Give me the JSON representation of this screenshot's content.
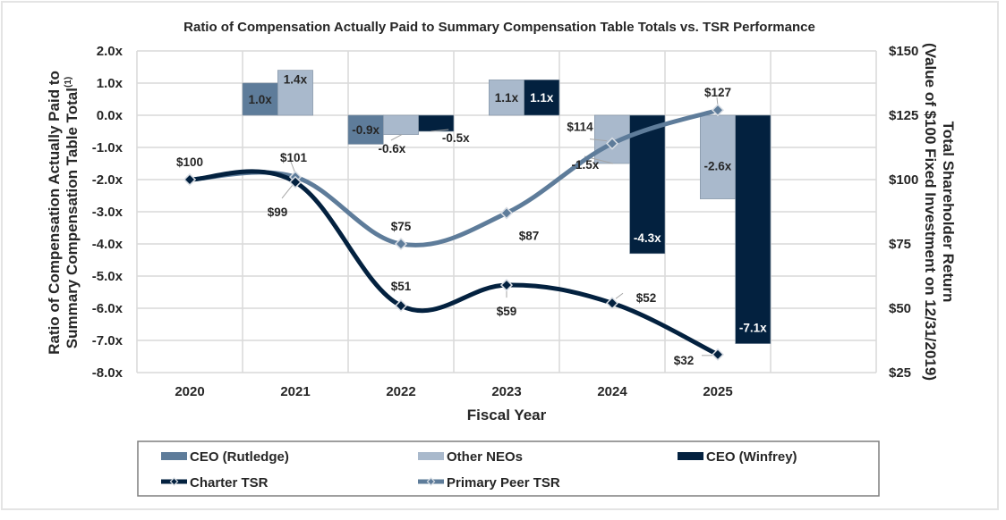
{
  "chart_data": {
    "type": "bar+line",
    "title": "Ratio of Compensation Actually Paid to Summary Compensation Table Totals vs. TSR Performance",
    "xlabel": "Fiscal Year",
    "ylabel_left": "Ratio of Compensation Actually Paid to Summary Compensation Table Total",
    "ylabel_left_superscript": "(1)",
    "ylabel_right_line1": "Total Shareholder Return",
    "ylabel_right_line2": "(Value of $100 Fixed Investment on 12/31/2019)",
    "categories": [
      "2020",
      "2021",
      "2022",
      "2023",
      "2024",
      "2025",
      ""
    ],
    "ylim_left": [
      -8.0,
      2.0
    ],
    "yticks_left": [
      "2.0x",
      "1.0x",
      "0.0x",
      "-1.0x",
      "-2.0x",
      "-3.0x",
      "-4.0x",
      "-5.0x",
      "-6.0x",
      "-7.0x",
      "-8.0x"
    ],
    "ylim_right": [
      25,
      150
    ],
    "yticks_right": [
      "$150",
      "$125",
      "$100",
      "$75",
      "$50",
      "$25"
    ],
    "grid": true,
    "legend_position": "bottom",
    "bar_series": [
      {
        "name": "CEO (Rutledge)",
        "color": "#5e7c9a",
        "values": [
          null,
          1.0,
          -0.9,
          null,
          null,
          null,
          null
        ],
        "labels": [
          "",
          "1.0x",
          "-0.9x",
          "",
          "",
          "",
          ""
        ]
      },
      {
        "name": "Other NEOs",
        "color": "#a9b9cc",
        "values": [
          null,
          1.4,
          -0.6,
          1.1,
          -1.5,
          -2.6,
          null
        ],
        "labels": [
          "",
          "1.4x",
          "-0.6x",
          "1.1x",
          "-1.5x",
          "-2.6x",
          ""
        ]
      },
      {
        "name": "CEO (Winfrey)",
        "color": "#03213f",
        "values": [
          null,
          null,
          -0.5,
          1.1,
          -4.3,
          -7.1,
          null
        ],
        "labels": [
          "",
          "",
          "-0.5x",
          "1.1x",
          "-4.3x",
          "-7.1x",
          ""
        ]
      }
    ],
    "line_series": [
      {
        "name": "Charter TSR",
        "color": "#03213f",
        "axis": "right",
        "values": [
          100,
          99,
          51,
          59,
          52,
          32
        ],
        "labels": [
          "",
          "$99",
          "$51",
          "$59",
          "$52",
          "$32"
        ]
      },
      {
        "name": "Primary Peer TSR",
        "color": "#5e7c9a",
        "axis": "right",
        "values": [
          100,
          101,
          75,
          87,
          114,
          127
        ],
        "labels": [
          "$100",
          "$101",
          "$75",
          "$87",
          "$114",
          "$127"
        ]
      }
    ]
  }
}
